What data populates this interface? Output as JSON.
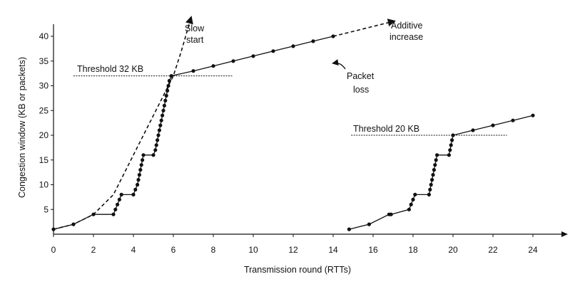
{
  "chart_data": {
    "type": "line",
    "xlabel": "Transmission round (RTTs)",
    "ylabel": "Congestion window  (KB or packets)",
    "xlim": [
      0,
      25
    ],
    "ylim": [
      0,
      44
    ],
    "x_ticks": [
      0,
      2,
      4,
      6,
      8,
      10,
      12,
      14,
      16,
      18,
      20,
      22,
      24
    ],
    "y_ticks": [
      5,
      10,
      15,
      20,
      25,
      30,
      35,
      40
    ],
    "grid": false,
    "annotations": {
      "slow_start": [
        "Slow",
        "start"
      ],
      "additive_increase": [
        "Additive",
        "increase"
      ],
      "packet_loss": [
        "Packet",
        "loss"
      ],
      "threshold_32": "Threshold 32 KB",
      "threshold_20": "Threshold 20 KB"
    },
    "thresholds": [
      {
        "value": 32,
        "x_range": [
          1,
          9
        ]
      },
      {
        "value": 20,
        "x_range": [
          14.9,
          22.7
        ]
      }
    ],
    "series": [
      {
        "style": "solid-with-markers",
        "segments": [
          {
            "points": [
              [
                0,
                1
              ],
              [
                1,
                2
              ],
              [
                2,
                4
              ],
              [
                3,
                4
              ],
              [
                3.1,
                5
              ],
              [
                3.2,
                6
              ],
              [
                3.3,
                7
              ],
              [
                3.4,
                8
              ],
              [
                4,
                8
              ],
              [
                4.1,
                9
              ],
              [
                4.2,
                10
              ],
              [
                4.25,
                11
              ],
              [
                4.3,
                12
              ],
              [
                4.35,
                13
              ],
              [
                4.4,
                14
              ],
              [
                4.45,
                15
              ],
              [
                4.5,
                16
              ],
              [
                5,
                16
              ],
              [
                5.1,
                17
              ],
              [
                5.15,
                18
              ],
              [
                5.2,
                19
              ],
              [
                5.25,
                20
              ],
              [
                5.3,
                21
              ],
              [
                5.35,
                22
              ],
              [
                5.4,
                23
              ],
              [
                5.45,
                24
              ],
              [
                5.5,
                25
              ],
              [
                5.55,
                26
              ],
              [
                5.6,
                27
              ],
              [
                5.65,
                28
              ],
              [
                5.7,
                29
              ],
              [
                5.75,
                30
              ],
              [
                5.8,
                31
              ],
              [
                5.9,
                32
              ],
              [
                7,
                33
              ],
              [
                8,
                34
              ],
              [
                9,
                35
              ],
              [
                10,
                36
              ],
              [
                11,
                37
              ],
              [
                12,
                38
              ],
              [
                13,
                39
              ],
              [
                14,
                40
              ]
            ]
          },
          {
            "points": [
              [
                14.8,
                1
              ],
              [
                15.8,
                2
              ],
              [
                16.8,
                4
              ],
              [
                16.9,
                4
              ],
              [
                17.8,
                5
              ],
              [
                17.9,
                6
              ],
              [
                18.0,
                7
              ],
              [
                18.1,
                8
              ],
              [
                18.8,
                8
              ],
              [
                18.85,
                9
              ],
              [
                18.9,
                10
              ],
              [
                18.95,
                11
              ],
              [
                19.0,
                12
              ],
              [
                19.05,
                13
              ],
              [
                19.1,
                14
              ],
              [
                19.15,
                15
              ],
              [
                19.2,
                16
              ],
              [
                19.8,
                16
              ],
              [
                19.85,
                17
              ],
              [
                19.9,
                18
              ],
              [
                19.95,
                19
              ],
              [
                20.0,
                20
              ],
              [
                21,
                21
              ],
              [
                22,
                22
              ],
              [
                23,
                23
              ],
              [
                24,
                24
              ]
            ]
          }
        ]
      },
      {
        "style": "dashed",
        "segments": [
          {
            "points": [
              [
                0,
                1
              ],
              [
                1,
                2
              ],
              [
                2,
                4
              ],
              [
                3,
                8
              ],
              [
                4,
                16
              ],
              [
                5,
                24
              ],
              [
                6,
                32
              ],
              [
                6.4,
                37
              ],
              [
                6.9,
                44
              ]
            ]
          },
          {
            "points": [
              [
                14,
                40
              ],
              [
                15,
                41
              ],
              [
                16,
                42
              ],
              [
                17,
                43
              ],
              [
                17.1,
                43.1
              ]
            ]
          }
        ]
      }
    ]
  }
}
